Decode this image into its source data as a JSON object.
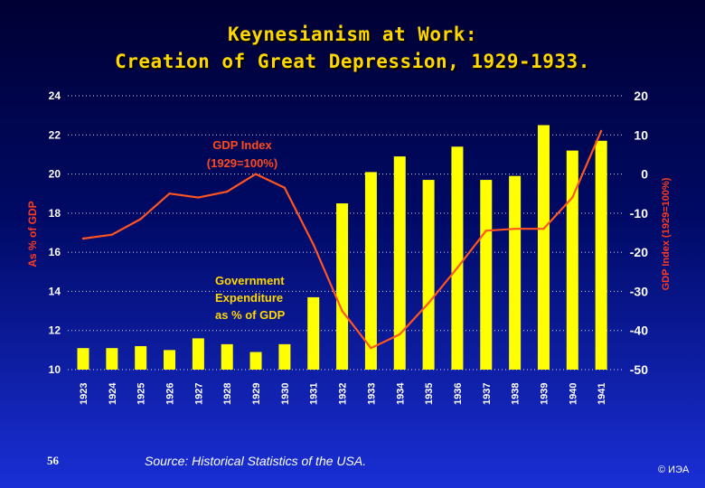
{
  "slide": {
    "title_line1": "Keynesianism at Work:",
    "title_line2": "Creation of Great Depression, 1929-1933.",
    "source": "Source: Historical Statistics of the USA.",
    "page_number": "56",
    "copyright": "© ИЭА"
  },
  "colors": {
    "bar": "#ffff00",
    "line": "#ff5520",
    "axis_label": "#ff3b1f",
    "tick_text": "#ffffff",
    "gdp_label": "#ff4a1f",
    "gov_label": "#ffd700"
  },
  "chart_data": {
    "type": "bar+line",
    "categories": [
      "1923",
      "1924",
      "1925",
      "1926",
      "1927",
      "1928",
      "1929",
      "1930",
      "1931",
      "1932",
      "1933",
      "1934",
      "1935",
      "1936",
      "1937",
      "1938",
      "1939",
      "1940",
      "1941"
    ],
    "series": [
      {
        "name": "Government Expenditure as % of GDP",
        "type": "bar",
        "axis": "left",
        "values": [
          11.1,
          11.1,
          11.2,
          11.0,
          11.6,
          11.3,
          10.9,
          11.3,
          13.7,
          18.5,
          20.1,
          20.9,
          19.7,
          21.4,
          19.7,
          19.9,
          22.5,
          21.2,
          21.7
        ]
      },
      {
        "name": "GDP Index (1929=100%)",
        "type": "line",
        "axis": "right",
        "values": [
          -16.5,
          -15.5,
          -11.5,
          -5.0,
          -6.0,
          -4.5,
          0.0,
          -3.5,
          -18.0,
          -35.0,
          -44.5,
          -41.0,
          -33.0,
          -24.0,
          -14.5,
          -14.0,
          -14.0,
          -6.0,
          11.0
        ]
      }
    ],
    "y_left": {
      "label": "As % of GDP",
      "min": 10,
      "max": 24,
      "ticks": [
        "10",
        "12",
        "14",
        "16",
        "18",
        "20",
        "22",
        "24"
      ]
    },
    "y_right": {
      "label": "GDP Index (1929=100%)",
      "min": -50,
      "max": 20,
      "ticks": [
        "-50",
        "-40",
        "-30",
        "-20",
        "-10",
        "0",
        "10",
        "20"
      ]
    },
    "annotations": [
      {
        "id": "gdp",
        "lines": [
          "GDP Index",
          "(1929=100%)"
        ]
      },
      {
        "id": "gov",
        "lines": [
          "Government",
          "Expenditure",
          "as % of GDP"
        ]
      }
    ],
    "grid": "horizontal dotted"
  }
}
